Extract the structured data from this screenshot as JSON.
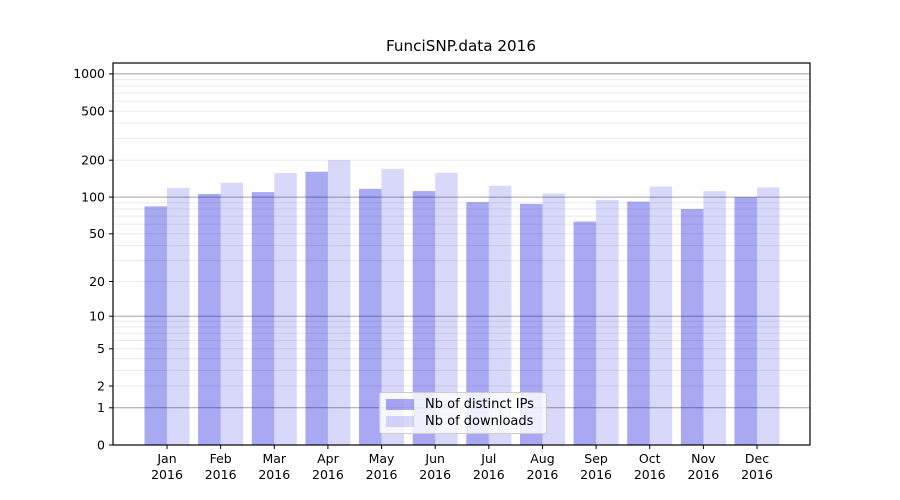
{
  "chart_data": {
    "type": "bar",
    "title": "FunciSNP.data 2016",
    "x_year_label": "2016",
    "categories": [
      "Jan",
      "Feb",
      "Mar",
      "Apr",
      "May",
      "Jun",
      "Jul",
      "Aug",
      "Sep",
      "Oct",
      "Nov",
      "Dec"
    ],
    "series": [
      {
        "name": "Nb of distinct IPs",
        "color": "#0000dc57",
        "values": [
          84,
          106,
          110,
          161,
          117,
          112,
          91,
          88,
          63,
          92,
          80,
          100
        ]
      },
      {
        "name": "Nb of downloads",
        "color": "#0000dc27",
        "values": [
          119,
          131,
          157,
          200,
          170,
          158,
          124,
          107,
          95,
          122,
          112,
          120
        ]
      }
    ],
    "y_ticks": [
      1000,
      500,
      200,
      100,
      50,
      20,
      10,
      5,
      2,
      1,
      0
    ],
    "y_scale": "log10(1+x)",
    "ylim": [
      0,
      1230
    ],
    "grid": {
      "major": [
        1,
        10,
        100,
        1000
      ],
      "minor": [
        2,
        3,
        4,
        5,
        6,
        7,
        8,
        9,
        20,
        30,
        40,
        50,
        60,
        70,
        80,
        90,
        200,
        300,
        400,
        500,
        600,
        700,
        800,
        900
      ]
    },
    "legend_position": "bottom-center",
    "colors": {
      "grid_major": "#a0a0a0",
      "grid_minor": "#eaeaea",
      "axis": "#000000"
    }
  }
}
